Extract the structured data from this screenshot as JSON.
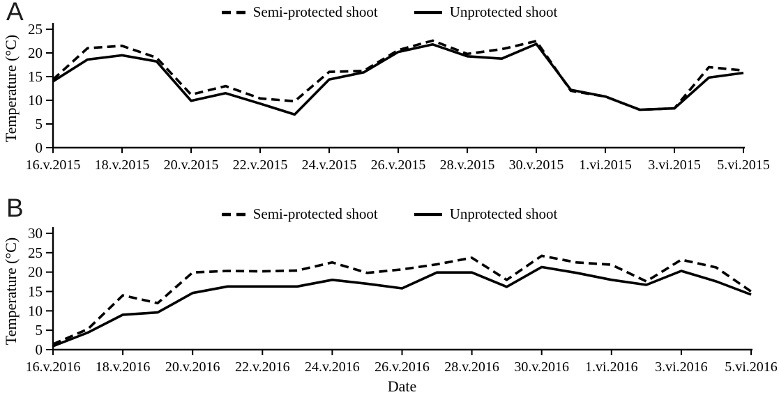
{
  "figure_type": "dual-panel line chart",
  "x_axis_title": "Date",
  "colors": {
    "line": "#000000",
    "background": "#ffffff",
    "text": "#000000"
  },
  "chart_data": [
    {
      "type": "line",
      "panel_label": "A",
      "ylabel": "Temperature (°C)",
      "ylim": [
        0,
        25
      ],
      "ytick_labels": [
        "0",
        "5",
        "10",
        "15",
        "20",
        "25"
      ],
      "grid": false,
      "legend_position": "top-center",
      "x_tick_labels": [
        "16.v.2015",
        "18.v.2015",
        "20.v.2015",
        "22.v.2015",
        "24.v.2015",
        "26.v.2015",
        "28.v.2015",
        "30.v.2015",
        "1.vi.2015",
        "3.vi.2015",
        "5.vi.2015"
      ],
      "categories": [
        "16.v.2015",
        "17.v.2015",
        "18.v.2015",
        "19.v.2015",
        "20.v.2015",
        "21.v.2015",
        "22.v.2015",
        "23.v.2015",
        "24.v.2015",
        "25.v.2015",
        "26.v.2015",
        "27.v.2015",
        "28.v.2015",
        "29.v.2015",
        "30.v.2015",
        "31.v.2015",
        "1.vi.2015",
        "2.vi.2015",
        "3.vi.2015",
        "4.vi.2015",
        "5.vi.2015"
      ],
      "series": [
        {
          "name": "Semi-protected shoot",
          "line_style": "dashed",
          "values": [
            14.4,
            21.0,
            21.5,
            19.0,
            11.2,
            13.0,
            10.4,
            9.8,
            16.0,
            16.2,
            20.6,
            22.6,
            19.8,
            20.8,
            22.5,
            12.0,
            10.8,
            8.0,
            8.3,
            17.0,
            16.3
          ]
        },
        {
          "name": "Unprotected shoot",
          "line_style": "solid",
          "values": [
            14.0,
            18.6,
            19.5,
            18.2,
            9.9,
            11.5,
            9.3,
            7.0,
            14.4,
            15.9,
            20.2,
            21.8,
            19.3,
            18.8,
            21.9,
            12.2,
            10.8,
            8.0,
            8.3,
            14.8,
            15.8
          ]
        }
      ]
    },
    {
      "type": "line",
      "panel_label": "B",
      "ylabel": "Temperature (°C)",
      "ylim": [
        0,
        30
      ],
      "ytick_labels": [
        "0",
        "5",
        "10",
        "15",
        "20",
        "25",
        "30"
      ],
      "grid": false,
      "legend_position": "top-center",
      "x_tick_labels": [
        "16.v.2016",
        "18.v.2016",
        "20.v.2016",
        "22.v.2016",
        "24.v.2016",
        "26.v.2016",
        "28.v.2016",
        "30.v.2016",
        "1.vi.2016",
        "3.vi.2016",
        "5.vi.2016"
      ],
      "categories": [
        "16.v.2016",
        "17.v.2016",
        "18.v.2016",
        "19.v.2016",
        "20.v.2016",
        "21.v.2016",
        "22.v.2016",
        "23.v.2016",
        "24.v.2016",
        "25.v.2016",
        "26.v.2016",
        "27.v.2016",
        "28.v.2016",
        "29.v.2016",
        "30.v.2016",
        "31.v.2016",
        "1.vi.2016",
        "2.vi.2016",
        "3.vi.2016",
        "4.vi.2016",
        "5.vi.2016"
      ],
      "series": [
        {
          "name": "Semi-protected shoot",
          "line_style": "dashed",
          "values": [
            1.4,
            5.3,
            14.0,
            12.0,
            19.9,
            20.3,
            20.2,
            20.4,
            22.5,
            19.8,
            20.7,
            22.0,
            23.7,
            18.0,
            24.2,
            22.5,
            21.9,
            17.6,
            23.2,
            21.2,
            15.0
          ]
        },
        {
          "name": "Unprotected shoot",
          "line_style": "solid",
          "values": [
            0.9,
            4.4,
            9.0,
            9.6,
            14.6,
            16.3,
            16.3,
            16.3,
            18.0,
            17.0,
            15.8,
            19.9,
            19.9,
            16.2,
            21.3,
            19.8,
            18.0,
            16.7,
            20.3,
            17.6,
            14.2
          ]
        }
      ]
    }
  ]
}
